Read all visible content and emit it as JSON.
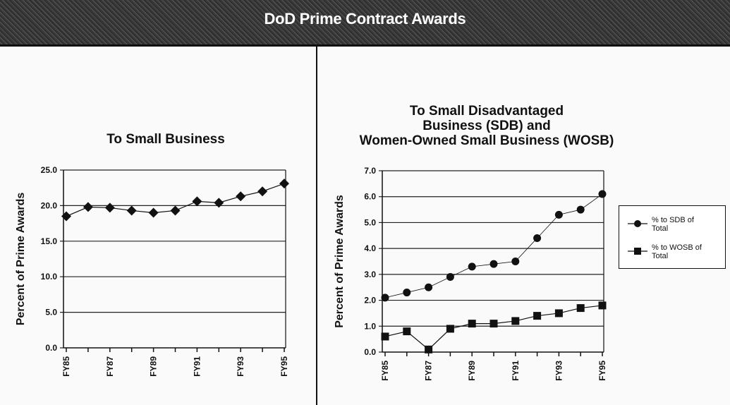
{
  "header": {
    "title": "DoD Prime Contract Awards"
  },
  "chart_data": [
    {
      "type": "line",
      "title": "To Small Business",
      "xlabel": "",
      "ylabel": "Percent of Prime Awards",
      "x": [
        "FY85",
        "FY86",
        "FY87",
        "FY88",
        "FY89",
        "FY90",
        "FY91",
        "FY92",
        "FY93",
        "FY94",
        "FY95"
      ],
      "tick_labels_x": [
        "FY85",
        "FY87",
        "FY89",
        "FY91",
        "FY93",
        "FY95"
      ],
      "tick_labels_y": [
        "0.0",
        "5.0",
        "10.0",
        "15.0",
        "20.0",
        "25.0"
      ],
      "ylim": [
        0,
        25
      ],
      "grid": true,
      "series": [
        {
          "name": "Small Business",
          "marker": "diamond",
          "values": [
            18.5,
            19.8,
            19.7,
            19.3,
            19.0,
            19.3,
            20.6,
            20.4,
            21.3,
            22.0,
            23.1
          ]
        }
      ]
    },
    {
      "type": "line",
      "title": "To Small Disadvantaged Business (SDB) and Women-Owned Small Business (WOSB)",
      "title_lines": [
        "To Small Disadvantaged",
        "Business (SDB) and",
        "Women-Owned Small Business (WOSB)"
      ],
      "xlabel": "",
      "ylabel": "Percent of Prime Awards",
      "x": [
        "FY85",
        "FY86",
        "FY87",
        "FY88",
        "FY89",
        "FY90",
        "FY91",
        "FY92",
        "FY93",
        "FY94",
        "FY95"
      ],
      "tick_labels_x": [
        "FY85",
        "FY87",
        "FY89",
        "FY91",
        "FY93",
        "FY95"
      ],
      "tick_labels_y": [
        "0.0",
        "1.0",
        "2.0",
        "3.0",
        "4.0",
        "5.0",
        "6.0",
        "7.0"
      ],
      "ylim": [
        0,
        7
      ],
      "grid": true,
      "legend_position": "right",
      "series": [
        {
          "name": "% to SDB of Total",
          "legend_lines": [
            "% to SDB of",
            "Total"
          ],
          "marker": "circle",
          "values": [
            2.1,
            2.3,
            2.5,
            2.9,
            3.3,
            3.4,
            3.5,
            4.4,
            5.3,
            5.5,
            6.1
          ]
        },
        {
          "name": "% to WOSB of Total",
          "legend_lines": [
            "% to WOSB of",
            "Total"
          ],
          "marker": "square",
          "values": [
            0.6,
            0.8,
            0.1,
            0.9,
            1.1,
            1.1,
            1.2,
            1.4,
            1.5,
            1.7,
            1.8
          ]
        }
      ]
    }
  ]
}
